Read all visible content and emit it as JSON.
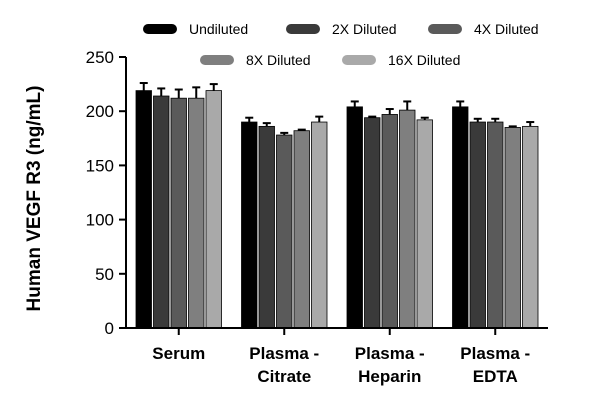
{
  "chart_data": {
    "type": "bar",
    "title": "",
    "xlabel": "",
    "ylabel": "Human VEGF R3 (ng/mL)",
    "ylim": [
      0,
      250
    ],
    "yticks": [
      0,
      50,
      100,
      150,
      200,
      250
    ],
    "grid": false,
    "legend_position": "top",
    "error_bars": true,
    "categories": [
      [
        "Serum"
      ],
      [
        "Plasma -",
        "Citrate"
      ],
      [
        "Plasma -",
        "Heparin"
      ],
      [
        "Plasma -",
        "EDTA"
      ]
    ],
    "series": [
      {
        "name": "Undiluted",
        "color": "#000000",
        "values": [
          219,
          190,
          204,
          204
        ],
        "errors": [
          7,
          4,
          5,
          5
        ]
      },
      {
        "name": "2X Diluted",
        "color": "#3a3a3a",
        "values": [
          214,
          186,
          194,
          190
        ],
        "errors": [
          7,
          3,
          1,
          3
        ]
      },
      {
        "name": "4X Diluted",
        "color": "#5a5a5a",
        "values": [
          212,
          178,
          197,
          190
        ],
        "errors": [
          8,
          2,
          5,
          3
        ]
      },
      {
        "name": "8X Diluted",
        "color": "#7f7f7f",
        "values": [
          212,
          182,
          201,
          185
        ],
        "errors": [
          10,
          1,
          8,
          1
        ]
      },
      {
        "name": "16X Diluted",
        "color": "#a9a9a9",
        "values": [
          219,
          190,
          192,
          186
        ],
        "errors": [
          6,
          5,
          2,
          4
        ]
      }
    ]
  }
}
